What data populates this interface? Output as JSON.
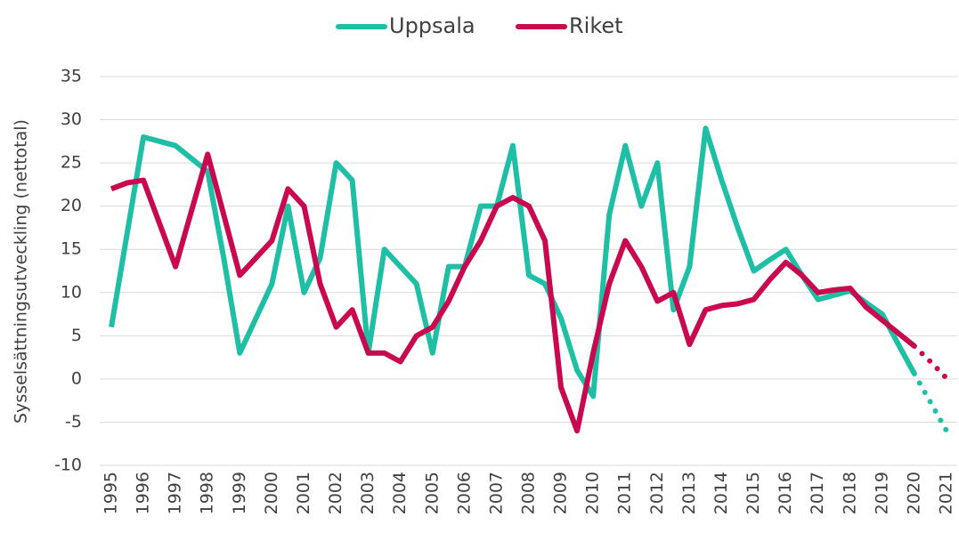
{
  "chart_data": {
    "type": "line",
    "y_axis_label": "Sysselsättningsutveckling (nettotal)",
    "categories": [
      "1995",
      null,
      "1996",
      null,
      "1997",
      null,
      "1998",
      null,
      "1999",
      null,
      "2000",
      null,
      "2001",
      null,
      "2002",
      null,
      "2003",
      null,
      "2004",
      null,
      "2005",
      null,
      "2006",
      null,
      "2007",
      null,
      "2008",
      null,
      "2009",
      null,
      "2010",
      null,
      "2011",
      null,
      "2012",
      null,
      "2013",
      null,
      "2014",
      null,
      "2015",
      null,
      "2016",
      null,
      "2017",
      null,
      "2018",
      null,
      "2019",
      null,
      "2020",
      null,
      "2021"
    ],
    "series": [
      {
        "name": "Uppsala",
        "color": "#1ebfa5",
        "values": [
          6,
          17,
          28,
          27.5,
          27,
          25.5,
          24,
          14,
          3,
          7,
          11,
          20,
          10,
          14,
          25,
          23,
          3,
          15,
          13,
          11,
          3,
          13,
          13,
          20,
          20,
          27,
          12,
          11,
          7,
          1,
          -2,
          19,
          27,
          20,
          25,
          8,
          13,
          29,
          23,
          17.5,
          12.5,
          13.8,
          15,
          12,
          9.2,
          9.7,
          10.2,
          8.8,
          7.5,
          4,
          0.6,
          -2.7,
          -6
        ]
      },
      {
        "name": "Riket",
        "color": "#c8084f",
        "values": [
          22,
          22.7,
          23,
          18,
          13,
          19.5,
          26,
          19,
          12,
          14,
          16,
          22,
          20,
          11,
          6,
          8,
          3,
          3,
          2,
          5,
          6,
          9,
          13,
          16,
          20,
          21,
          20,
          16,
          -1,
          -6,
          3,
          11,
          16,
          13,
          9,
          10,
          4,
          8,
          8.5,
          8.7,
          9.2,
          11.5,
          13.5,
          12,
          10,
          10.3,
          10.5,
          8.3,
          6.8,
          5.3,
          3.8,
          2,
          0.1
        ]
      }
    ],
    "dotted_from": "2020",
    "ylim": [
      -10,
      35
    ],
    "yticks": [
      -10,
      -5,
      0,
      5,
      10,
      15,
      20,
      25,
      30,
      35
    ],
    "grid": true,
    "legend": "top"
  }
}
